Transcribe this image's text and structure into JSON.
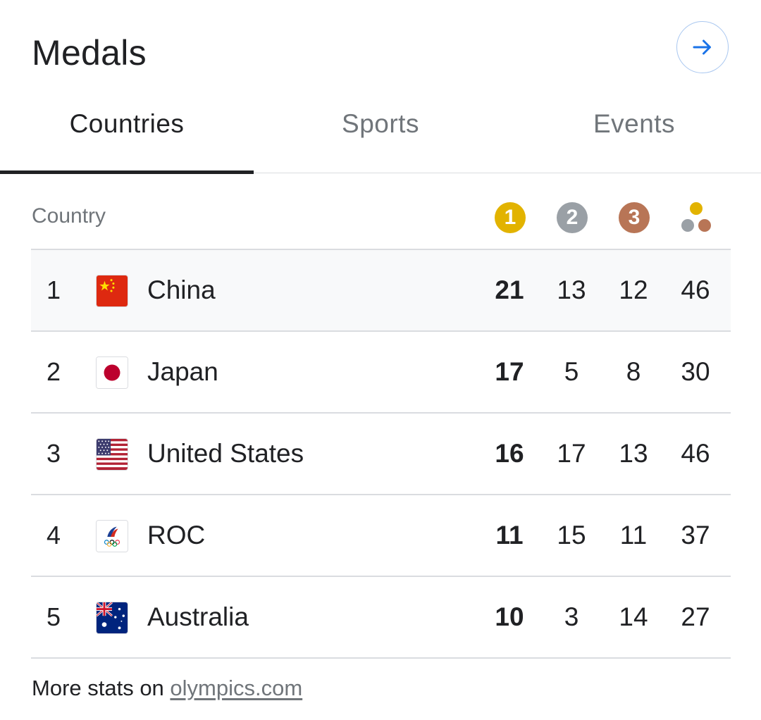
{
  "header": {
    "title": "Medals",
    "arrow_icon": "arrow-right-icon"
  },
  "tabs": [
    {
      "label": "Countries",
      "active": true
    },
    {
      "label": "Sports",
      "active": false
    },
    {
      "label": "Events",
      "active": false
    }
  ],
  "table": {
    "country_header": "Country",
    "medal_headers": [
      {
        "label": "1",
        "color": "#e2b300",
        "name": "gold"
      },
      {
        "label": "2",
        "color": "#9aa0a6",
        "name": "silver"
      },
      {
        "label": "3",
        "color": "#b87556",
        "name": "bronze"
      }
    ],
    "total_icon": "total-medals-icon",
    "rows": [
      {
        "rank": "1",
        "country": "China",
        "flag": "china-flag-icon",
        "gold": "21",
        "silver": "13",
        "bronze": "12",
        "total": "46"
      },
      {
        "rank": "2",
        "country": "Japan",
        "flag": "japan-flag-icon",
        "gold": "17",
        "silver": "5",
        "bronze": "8",
        "total": "30"
      },
      {
        "rank": "3",
        "country": "United States",
        "flag": "usa-flag-icon",
        "gold": "16",
        "silver": "17",
        "bronze": "13",
        "total": "46"
      },
      {
        "rank": "4",
        "country": "ROC",
        "flag": "roc-emblem-icon",
        "gold": "11",
        "silver": "15",
        "bronze": "11",
        "total": "37"
      },
      {
        "rank": "5",
        "country": "Australia",
        "flag": "australia-flag-icon",
        "gold": "10",
        "silver": "3",
        "bronze": "14",
        "total": "27"
      }
    ]
  },
  "footer": {
    "prefix": "More stats on ",
    "link_text": "olympics.com"
  },
  "colors": {
    "accent_blue": "#1a73e8",
    "gold": "#e2b300",
    "silver": "#9aa0a6",
    "bronze": "#b87556"
  }
}
